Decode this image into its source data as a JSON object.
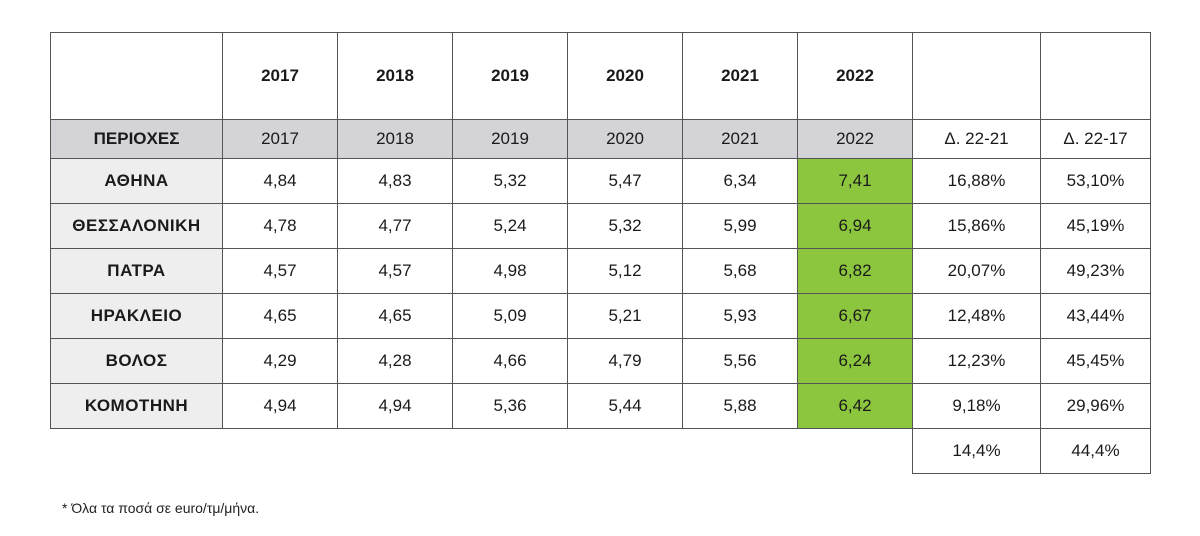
{
  "table": {
    "top_years": [
      "2017",
      "2018",
      "2019",
      "2020",
      "2021",
      "2022"
    ],
    "header": {
      "region_label": "ΠΕΡΙΟΧΕΣ",
      "years": [
        "2017",
        "2018",
        "2019",
        "2020",
        "2021",
        "2022"
      ],
      "delta_22_21": "Δ. 22-21",
      "delta_22_17": "Δ. 22-17"
    },
    "rows": [
      {
        "region": "ΑΘΗΝΑ",
        "values": [
          "4,84",
          "4,83",
          "5,32",
          "5,47",
          "6,34",
          "7,41"
        ],
        "d1": "16,88%",
        "d2": "53,10%"
      },
      {
        "region": "ΘΕΣΣΑΛΟΝΙΚΗ",
        "values": [
          "4,78",
          "4,77",
          "5,24",
          "5,32",
          "5,99",
          "6,94"
        ],
        "d1": "15,86%",
        "d2": "45,19%"
      },
      {
        "region": "ΠΑΤΡΑ",
        "values": [
          "4,57",
          "4,57",
          "4,98",
          "5,12",
          "5,68",
          "6,82"
        ],
        "d1": "20,07%",
        "d2": "49,23%"
      },
      {
        "region": "ΗΡΑΚΛΕΙΟ",
        "values": [
          "4,65",
          "4,65",
          "5,09",
          "5,21",
          "5,93",
          "6,67"
        ],
        "d1": "12,48%",
        "d2": "43,44%"
      },
      {
        "region": "ΒΟΛΟΣ",
        "values": [
          "4,29",
          "4,28",
          "4,66",
          "4,79",
          "5,56",
          "6,24"
        ],
        "d1": "12,23%",
        "d2": "45,45%"
      },
      {
        "region": "ΚΟΜΟΤΗΝΗ",
        "values": [
          "4,94",
          "4,94",
          "5,36",
          "5,44",
          "5,88",
          "6,42"
        ],
        "d1": "9,18%",
        "d2": "29,96%"
      }
    ],
    "averages": {
      "d1": "14,4%",
      "d2": "44,4%"
    }
  },
  "footnote": "* Όλα τα ποσά σε euro/τμ/μήνα.",
  "colors": {
    "highlight": "#8cc63e",
    "header_gray": "#d4d4d8",
    "region_bg": "#eeeeee",
    "border": "#555555"
  }
}
